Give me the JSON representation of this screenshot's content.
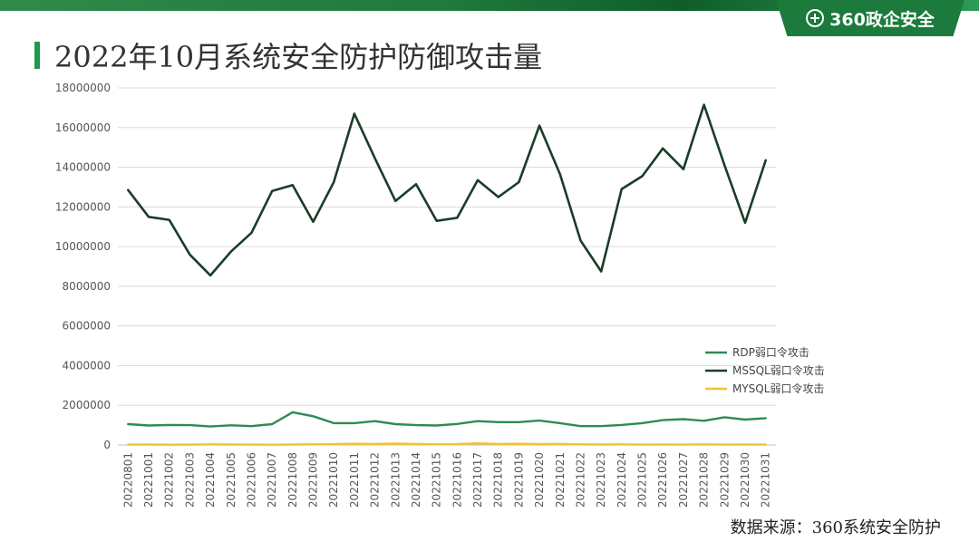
{
  "header": {
    "brand": "360政企安全",
    "brand_icon": "plus-circle-icon"
  },
  "title": "2022年10月系统安全防护防御攻击量",
  "source": "数据来源：360系统安全防护",
  "colors": {
    "accent": "#1f9a4a",
    "rdp": "#2e8b57",
    "mssql": "#1a3d28",
    "mysql": "#f2c230"
  },
  "chart_data": {
    "type": "line",
    "title": "",
    "xlabel": "",
    "ylabel": "",
    "ylim": [
      0,
      18000000
    ],
    "yticks": [
      "0",
      "2000000",
      "4000000",
      "6000000",
      "8000000",
      "10000000",
      "12000000",
      "14000000",
      "16000000",
      "18000000"
    ],
    "grid": true,
    "legend_position": "right",
    "categories": [
      "20220801",
      "20221001",
      "20221002",
      "20221003",
      "20221004",
      "20221005",
      "20221006",
      "20221007",
      "20221008",
      "20221009",
      "20221010",
      "20221011",
      "20221012",
      "20221013",
      "20221014",
      "20221015",
      "20221016",
      "20221017",
      "20221018",
      "20221019",
      "20221020",
      "20221021",
      "20221022",
      "20221023",
      "20221024",
      "20221025",
      "20221026",
      "20221027",
      "20221028",
      "20221029",
      "20221030",
      "20221031"
    ],
    "series": [
      {
        "name": "RDP弱口令攻击",
        "color": "#2e8b57",
        "values": [
          1050000,
          980000,
          1010000,
          1000000,
          930000,
          990000,
          950000,
          1050000,
          1650000,
          1450000,
          1100000,
          1100000,
          1200000,
          1050000,
          1000000,
          980000,
          1060000,
          1200000,
          1150000,
          1150000,
          1230000,
          1100000,
          950000,
          950000,
          1010000,
          1100000,
          1250000,
          1300000,
          1220000,
          1400000,
          1280000,
          1350000
        ]
      },
      {
        "name": "MSSQL弱口令攻击",
        "color": "#1a3d28",
        "values": [
          12850000,
          11500000,
          11350000,
          9600000,
          8550000,
          9750000,
          10700000,
          12800000,
          13100000,
          11250000,
          13250000,
          16700000,
          14450000,
          12300000,
          13150000,
          11300000,
          11450000,
          13350000,
          12500000,
          13250000,
          16100000,
          13650000,
          10300000,
          8750000,
          12900000,
          13550000,
          14950000,
          13900000,
          17150000,
          14100000,
          11200000,
          14350000
        ]
      },
      {
        "name": "MYSQL弱口令攻击",
        "color": "#f2c230",
        "values": [
          20000,
          25000,
          15000,
          20000,
          30000,
          25000,
          20000,
          15000,
          25000,
          30000,
          40000,
          60000,
          45000,
          70000,
          50000,
          35000,
          40000,
          80000,
          50000,
          60000,
          40000,
          45000,
          30000,
          25000,
          30000,
          20000,
          25000,
          20000,
          30000,
          20000,
          25000,
          20000
        ]
      }
    ]
  }
}
